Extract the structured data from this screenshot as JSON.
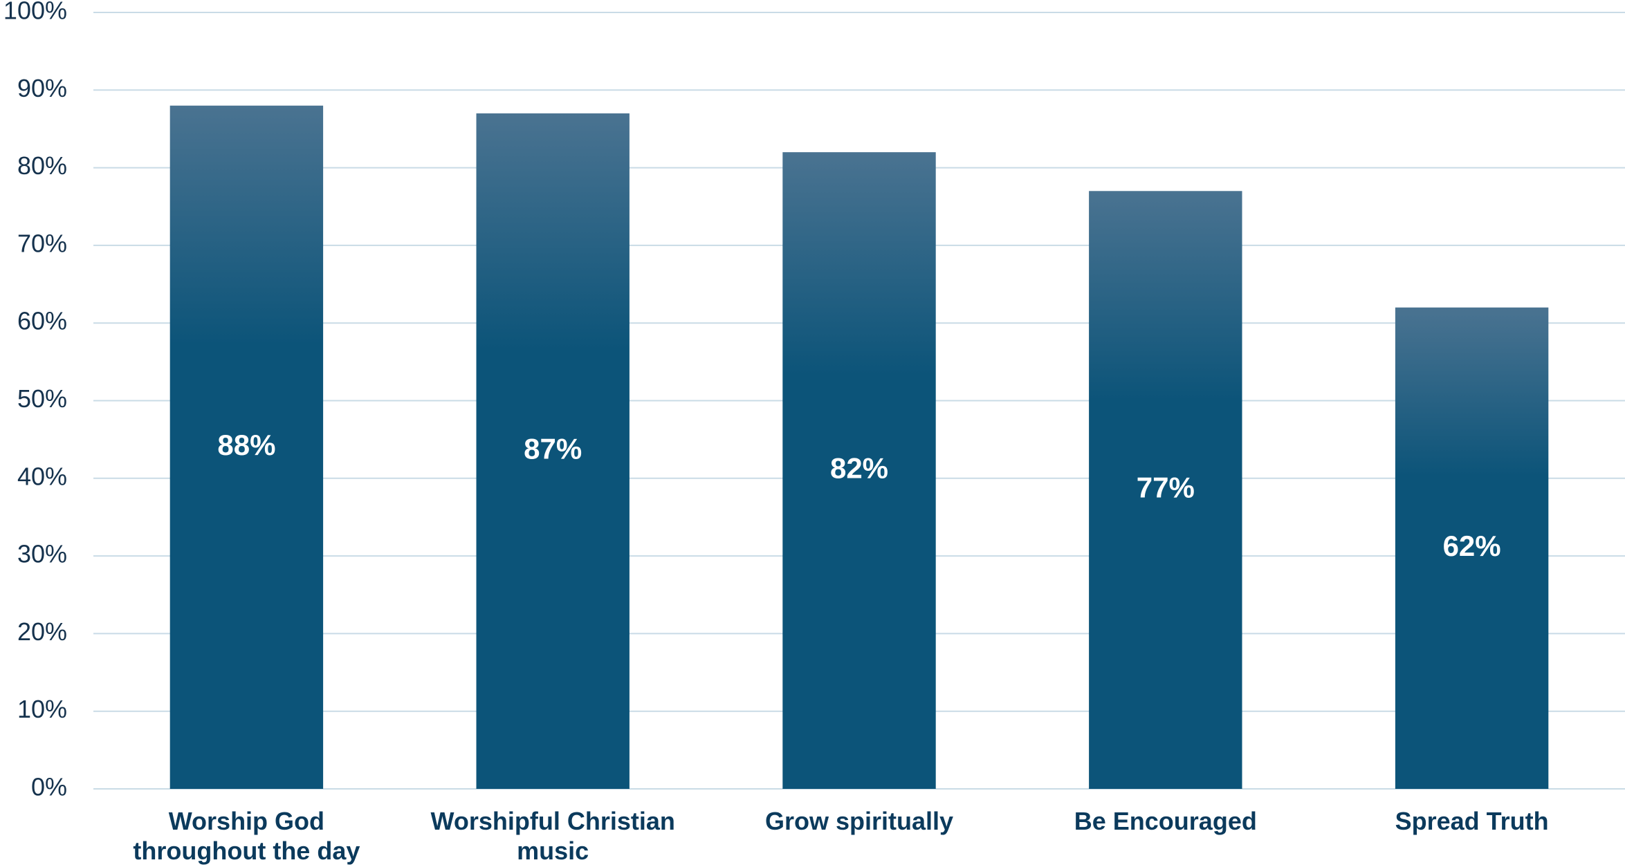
{
  "chart_data": {
    "type": "bar",
    "categories": [
      "Worship God throughout the day",
      "Worshipful Christian music",
      "Grow spiritually",
      "Be Encouraged",
      "Spread Truth"
    ],
    "values": [
      88,
      87,
      82,
      77,
      62
    ],
    "value_labels": [
      "88%",
      "87%",
      "82%",
      "77%",
      "62%"
    ],
    "color": "#0c5479",
    "ylim": [
      0,
      100
    ],
    "yticks": [
      {
        "value": 0,
        "label": "0%"
      },
      {
        "value": 10,
        "label": "10%"
      },
      {
        "value": 20,
        "label": "20%"
      },
      {
        "value": 30,
        "label": "30%"
      },
      {
        "value": 40,
        "label": "40%"
      },
      {
        "value": 50,
        "label": "50%"
      },
      {
        "value": 60,
        "label": "60%"
      },
      {
        "value": 70,
        "label": "70%"
      },
      {
        "value": 80,
        "label": "80%"
      },
      {
        "value": 90,
        "label": "90%"
      },
      {
        "value": 100,
        "label": "100%"
      }
    ],
    "grid": true
  }
}
